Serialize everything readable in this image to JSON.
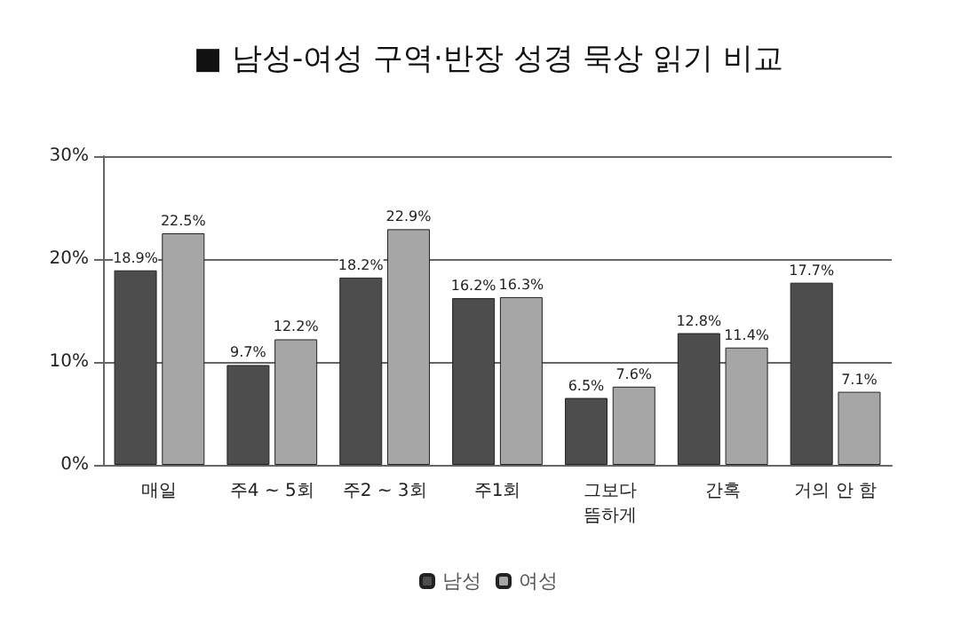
{
  "chart_data": {
    "type": "bar",
    "title": "■ 남성-여성 구역·반장 성경 묵상 읽기 비교",
    "categories": [
      "매일",
      "주4 ~ 5회",
      "주2 ~ 3회",
      "주1회",
      "그보다\n뜸하게",
      "간혹",
      "거의 안 함"
    ],
    "series": [
      {
        "name": "남성",
        "color": "#4d4d4d",
        "values": [
          18.9,
          9.7,
          18.2,
          16.2,
          6.5,
          12.8,
          17.7
        ],
        "value_labels": [
          "18.9%",
          "9.7%",
          "18.2%",
          "16.2%",
          "6.5%",
          "12.8%",
          "17.7%"
        ]
      },
      {
        "name": "여성",
        "color": "#a6a6a6",
        "values": [
          22.5,
          12.2,
          22.9,
          16.3,
          7.6,
          11.4,
          7.1
        ],
        "value_labels": [
          "22.5%",
          "12.2%",
          "22.9%",
          "16.3%",
          "7.6%",
          "11.4%",
          "7.1%"
        ]
      }
    ],
    "ylim": [
      0,
      30
    ],
    "yticks": [
      {
        "value": 0,
        "label": "0%"
      },
      {
        "value": 10,
        "label": "10%"
      },
      {
        "value": 20,
        "label": "20%"
      },
      {
        "value": 30,
        "label": "30%"
      }
    ],
    "grid": "y",
    "legend": "bottom"
  }
}
